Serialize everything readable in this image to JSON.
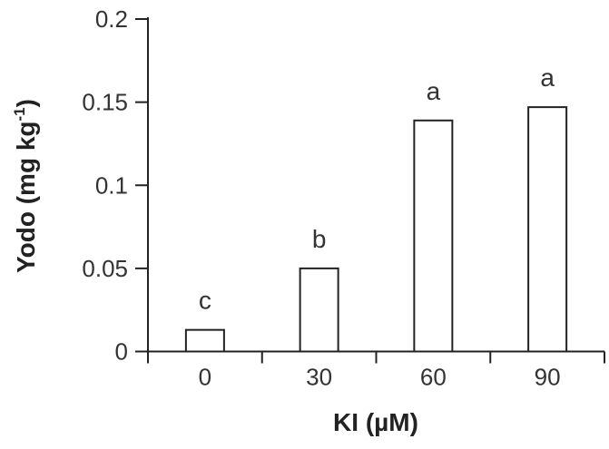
{
  "chart_data": {
    "type": "bar",
    "title": "",
    "xlabel": "KI (µM)",
    "ylabel_main": "Yodo (mg kg",
    "ylabel_sup": "-1",
    "ylabel_close": ")",
    "categories": [
      "0",
      "30",
      "60",
      "90"
    ],
    "values": [
      0.013,
      0.05,
      0.139,
      0.147
    ],
    "significance_letters": [
      "c",
      "b",
      "a",
      "a"
    ],
    "ylim": [
      0,
      0.2
    ],
    "yticks": [
      "0",
      "0.05",
      "0.1",
      "0.15",
      "0.2"
    ],
    "ytick_values": [
      0,
      0.05,
      0.1,
      0.15,
      0.2
    ],
    "grid": false,
    "bar_fill": "#ffffff",
    "bar_stroke": "#222222"
  }
}
